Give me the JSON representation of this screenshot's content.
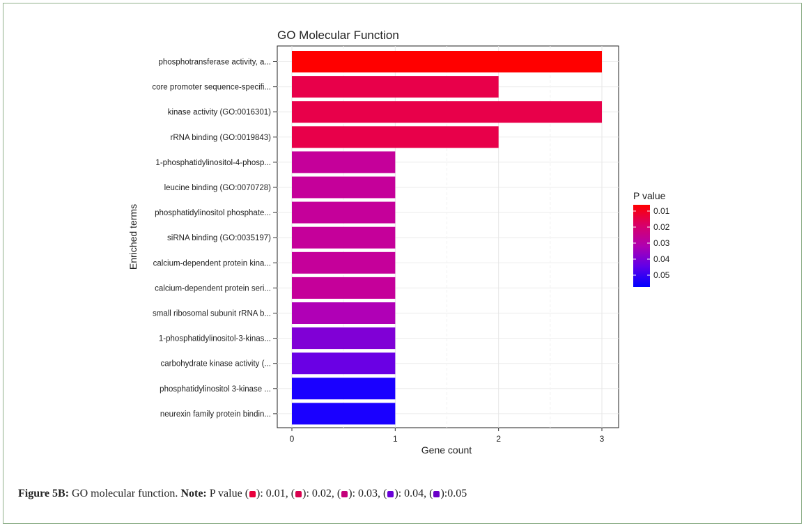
{
  "chart_data": {
    "type": "bar",
    "orientation": "horizontal",
    "title": "GO Molecular Function",
    "xlabel": "Gene count",
    "ylabel": "Enriched terms",
    "xlim": [
      0,
      3.15
    ],
    "xticks": [
      "0",
      "1",
      "2",
      "3"
    ],
    "grid": true,
    "categories": [
      "phosphotransferase activity, a...",
      "core promoter sequence-specifi...",
      "kinase activity (GO:0016301)",
      "rRNA binding (GO:0019843)",
      "1-phosphatidylinositol-4-phosp...",
      "leucine binding (GO:0070728)",
      "phosphatidylinositol phosphate...",
      "siRNA binding (GO:0035197)",
      "calcium-dependent protein kina...",
      "calcium-dependent protein seri...",
      "small ribosomal subunit rRNA b...",
      "1-phosphatidylinositol-3-kinas...",
      "carbohydrate kinase activity (...",
      "phosphatidylinositol 3-kinase ...",
      "neurexin family protein bindin..."
    ],
    "values": [
      3,
      2,
      3,
      2,
      1,
      1,
      1,
      1,
      1,
      1,
      1,
      1,
      1,
      1,
      1
    ],
    "bar_colors": [
      "#ff0000",
      "#e8004a",
      "#e8004a",
      "#e8004a",
      "#c5009a",
      "#c5009a",
      "#c5009a",
      "#c5009a",
      "#c5009a",
      "#c5009a",
      "#b000b6",
      "#8000d6",
      "#6a00e4",
      "#1a00ff",
      "#1a00ff"
    ],
    "legend": {
      "title": "P value",
      "placement": "right",
      "labels": [
        "0.01",
        "0.02",
        "0.03",
        "0.04",
        "0.05"
      ],
      "gradient": [
        "#ff0000",
        "#d8006a",
        "#b000b0",
        "#6000e8",
        "#0000ff"
      ]
    }
  },
  "caption": {
    "figure_label": "Figure 5B:",
    "text": "GO molecular function.",
    "note_label": "Note:",
    "note_intro": "P value (",
    "items": [
      {
        "color": "#e8003c",
        "value": "): 0.01,  ("
      },
      {
        "color": "#d8004e",
        "value": "): 0.02,  ("
      },
      {
        "color": "#c4007a",
        "value": "): 0.03,  ("
      },
      {
        "color": "#6a00d8",
        "value": "): 0.04,  ("
      },
      {
        "color": "#6a00c8",
        "value": "):0.05"
      }
    ]
  }
}
